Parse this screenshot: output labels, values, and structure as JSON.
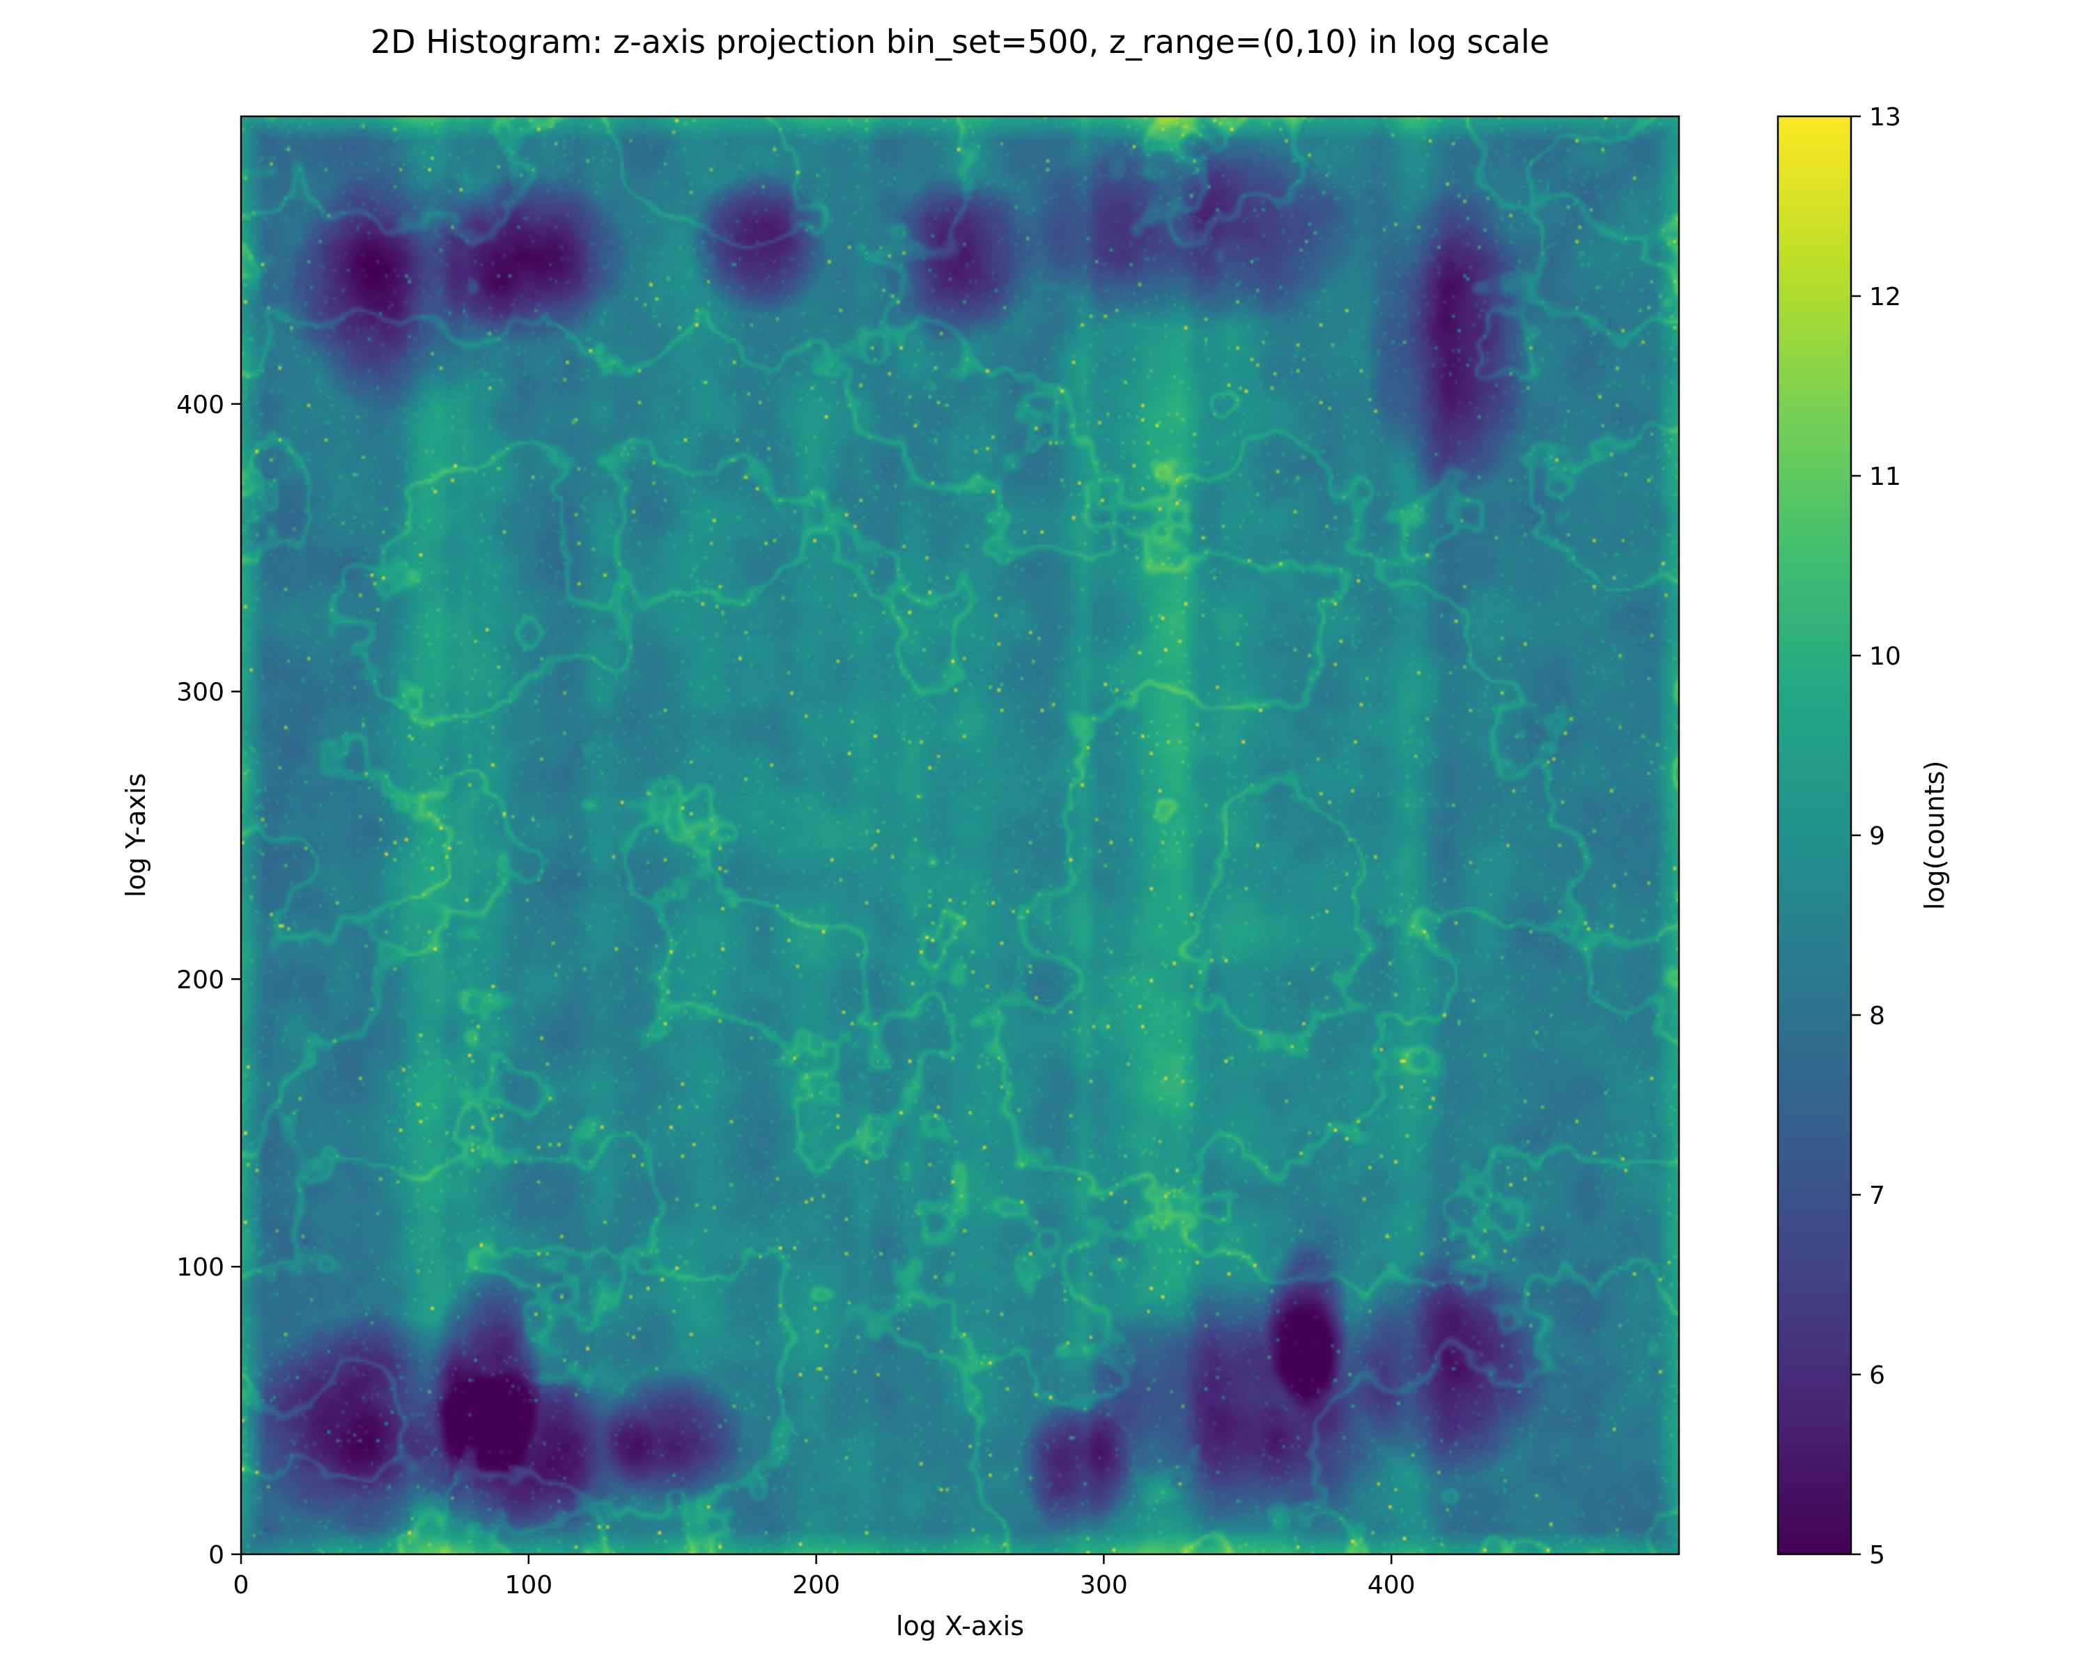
{
  "chart_data": {
    "type": "heatmap",
    "title": "2D Histogram: z-axis projection bin_set=500, z_range=(0,10) in log scale",
    "xlabel": "log X-axis",
    "ylabel": "log Y-axis",
    "xlim": [
      0,
      500
    ],
    "ylim": [
      0,
      500
    ],
    "x_ticks": [
      0,
      100,
      200,
      300,
      400
    ],
    "y_ticks": [
      0,
      100,
      200,
      300,
      400
    ],
    "bins": [
      500,
      500
    ],
    "colormap": "viridis",
    "colorbar": {
      "label": "log(counts)",
      "range": [
        5,
        13
      ],
      "ticks": [
        5,
        6,
        7,
        8,
        9,
        10,
        11,
        12,
        13
      ]
    },
    "grid": false,
    "description_of_field": {
      "typical_value": 8.5,
      "void_regions_value": 5.3,
      "filament_value": 9.8,
      "halo_peak_value": 12.5
    }
  }
}
